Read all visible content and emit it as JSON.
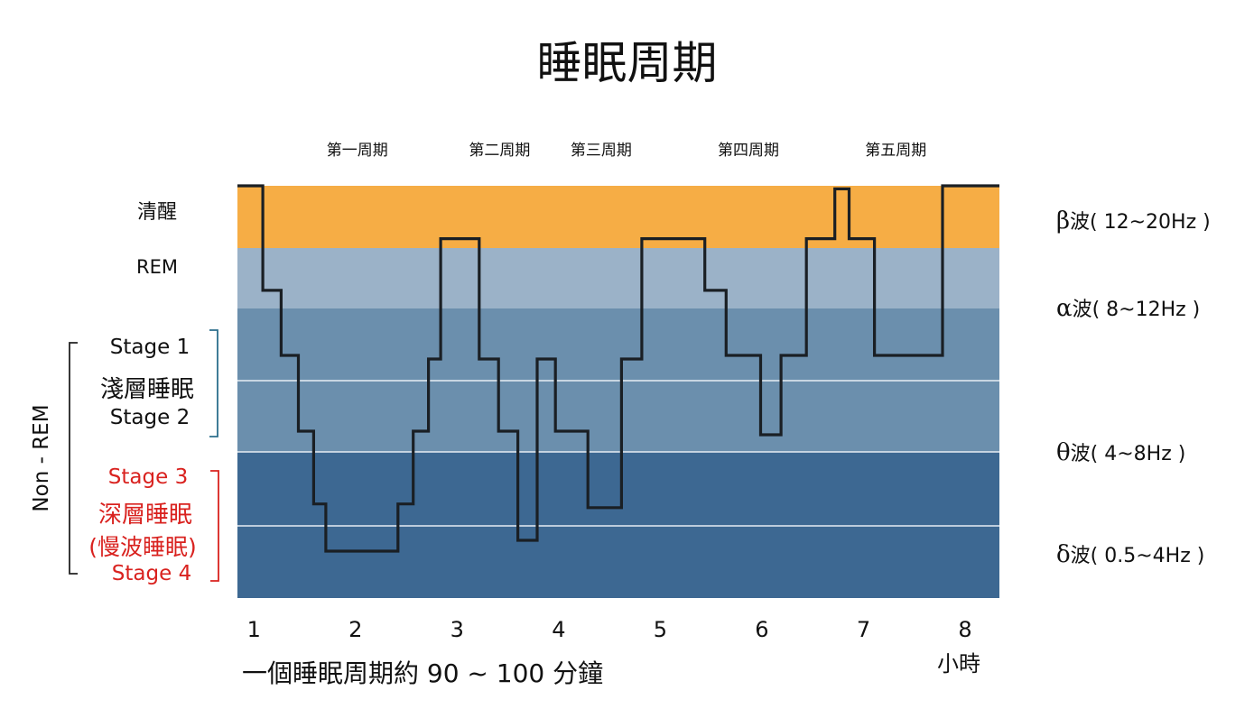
{
  "chart_data": {
    "type": "line",
    "title": "睡眠周期",
    "cycle_labels": [
      {
        "label": "第一周期",
        "x": 2.0
      },
      {
        "label": "第二周期",
        "x": 3.4
      },
      {
        "label": "第三周期",
        "x": 4.4
      },
      {
        "label": "第四周期",
        "x": 5.85
      },
      {
        "label": "第五周期",
        "x": 7.3
      }
    ],
    "stage_labels": {
      "wake": "清醒",
      "rem": "REM",
      "stage1": "Stage 1",
      "light_sleep": "淺層睡眠",
      "stage2": "Stage 2",
      "stage3": "Stage 3",
      "deep_sleep": "深層睡眠",
      "slow_wave": "(慢波睡眠)",
      "stage4": "Stage 4",
      "non_rem": "Non - REM"
    },
    "wave_labels": [
      {
        "symbol": "β",
        "text": "波( 12~20Hz )"
      },
      {
        "symbol": "α",
        "text": "波( 8~12Hz )"
      },
      {
        "symbol": "θ",
        "text": "波( 4~8Hz )"
      },
      {
        "symbol": "δ",
        "text": "波( 0.5~4Hz )"
      }
    ],
    "xticks": [
      "1",
      "2",
      "3",
      "4",
      "5",
      "6",
      "7",
      "8"
    ],
    "xunit": "小時",
    "xlim": [
      0.82,
      8.32
    ],
    "note": "一個睡眠周期約 90 ~ 100 分鐘",
    "y_levels": {
      "wake": 0,
      "rem": 1,
      "stage1": 2,
      "stage2": 3,
      "stage3": 4,
      "stage4": 5
    },
    "band_colors": [
      "#f6ad45",
      "#9bb2c8",
      "#6b8fad",
      "#3d6892"
    ],
    "line_color": "#1a1f24",
    "path": [
      [
        0.82,
        0
      ],
      [
        1.07,
        0
      ],
      [
        1.07,
        1.7
      ],
      [
        1.25,
        1.7
      ],
      [
        1.25,
        2.65
      ],
      [
        1.42,
        2.65
      ],
      [
        1.42,
        3.7
      ],
      [
        1.57,
        3.7
      ],
      [
        1.57,
        4.7
      ],
      [
        1.69,
        4.7
      ],
      [
        1.69,
        5.35
      ],
      [
        2.4,
        5.35
      ],
      [
        2.4,
        4.7
      ],
      [
        2.55,
        4.7
      ],
      [
        2.55,
        3.7
      ],
      [
        2.7,
        3.7
      ],
      [
        2.7,
        2.7
      ],
      [
        2.82,
        2.7
      ],
      [
        2.82,
        0.85
      ],
      [
        3.2,
        0.85
      ],
      [
        3.2,
        2.7
      ],
      [
        3.39,
        2.7
      ],
      [
        3.39,
        3.7
      ],
      [
        3.58,
        3.7
      ],
      [
        3.58,
        5.2
      ],
      [
        3.77,
        5.2
      ],
      [
        3.77,
        2.7
      ],
      [
        3.95,
        2.7
      ],
      [
        3.95,
        3.7
      ],
      [
        4.27,
        3.7
      ],
      [
        4.27,
        4.75
      ],
      [
        4.6,
        4.75
      ],
      [
        4.6,
        2.7
      ],
      [
        4.8,
        2.7
      ],
      [
        4.8,
        0.85
      ],
      [
        5.42,
        0.85
      ],
      [
        5.42,
        1.7
      ],
      [
        5.63,
        1.7
      ],
      [
        5.63,
        2.65
      ],
      [
        5.97,
        2.65
      ],
      [
        5.97,
        3.75
      ],
      [
        6.17,
        3.75
      ],
      [
        6.17,
        2.65
      ],
      [
        6.42,
        2.65
      ],
      [
        6.42,
        0.85
      ],
      [
        6.7,
        0.85
      ],
      [
        6.7,
        0.05
      ],
      [
        6.84,
        0.05
      ],
      [
        6.84,
        0.85
      ],
      [
        7.09,
        0.85
      ],
      [
        7.09,
        2.65
      ],
      [
        7.76,
        2.65
      ],
      [
        7.76,
        0
      ],
      [
        8.32,
        0
      ]
    ]
  }
}
